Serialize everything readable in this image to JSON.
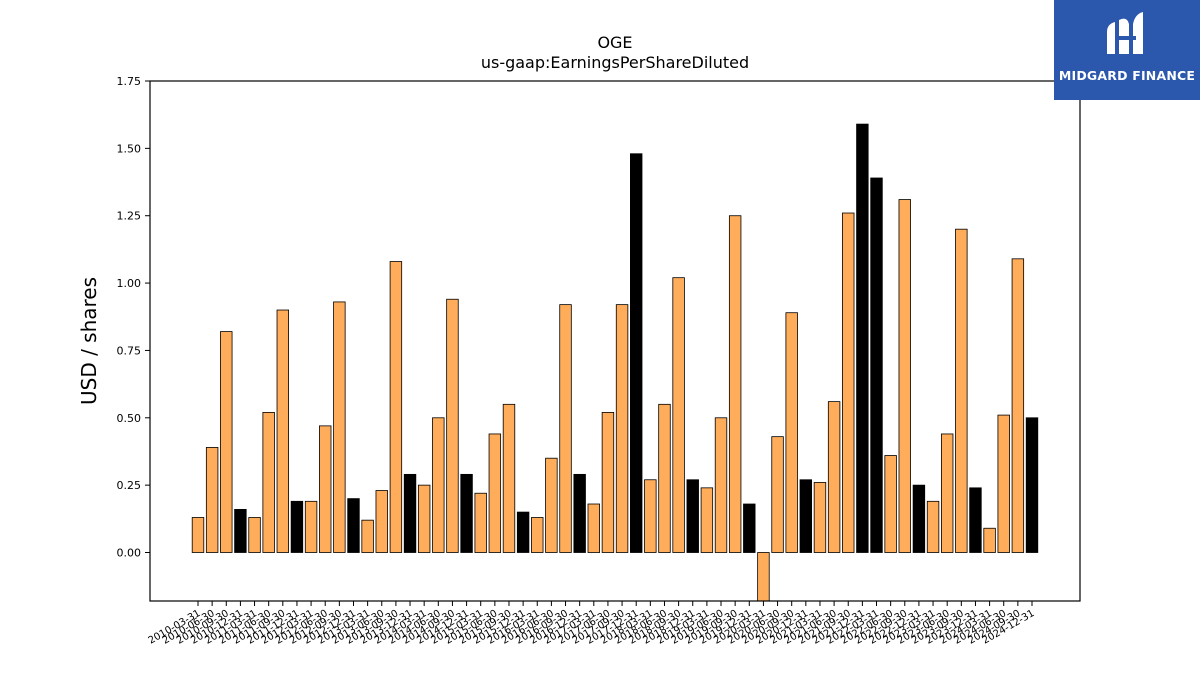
{
  "brand": {
    "name": "MIDGARD FINANCE",
    "background": "#2b57ad"
  },
  "chart_data": {
    "type": "bar",
    "title": "OGE",
    "subtitle": "us-gaap:EarningsPerShareDiluted",
    "ylabel": "USD / shares",
    "xlabel": "",
    "ylim": [
      -0.18,
      1.75
    ],
    "yticks": [
      "0.00",
      "0.25",
      "0.50",
      "0.75",
      "1.00",
      "1.25",
      "1.50",
      "1.75"
    ],
    "grid": false,
    "colors": {
      "quarterly": "#ffad5a",
      "annual": "#000000",
      "edge": "#000000"
    },
    "categories": [
      "2010-03-31",
      "2010-06-30",
      "2010-09-30",
      "2010-12-31",
      "2011-03-31",
      "2011-06-30",
      "2011-09-30",
      "2011-12-31",
      "2012-03-31",
      "2012-06-30",
      "2012-09-30",
      "2012-12-31",
      "2013-03-31",
      "2013-06-30",
      "2013-09-30",
      "2013-12-31",
      "2014-03-31",
      "2014-06-30",
      "2014-09-30",
      "2014-12-31",
      "2015-03-31",
      "2015-06-30",
      "2015-09-30",
      "2015-12-31",
      "2016-03-31",
      "2016-06-30",
      "2016-09-30",
      "2016-12-31",
      "2017-03-31",
      "2017-06-30",
      "2017-09-30",
      "2017-12-31",
      "2018-03-31",
      "2018-06-30",
      "2018-09-30",
      "2018-12-31",
      "2019-03-31",
      "2019-06-30",
      "2019-09-30",
      "2019-12-31",
      "2020-03-31",
      "2020-06-30",
      "2020-09-30",
      "2020-12-31",
      "2021-03-31",
      "2021-06-30",
      "2021-09-30",
      "2021-12-31",
      "2022-03-31",
      "2022-06-30",
      "2022-09-30",
      "2022-12-31",
      "2023-03-31",
      "2023-06-30",
      "2023-09-30",
      "2023-12-31",
      "2024-03-31",
      "2024-06-30",
      "2024-09-30",
      "2024-12-31"
    ],
    "values": [
      0.13,
      0.39,
      0.82,
      0.16,
      0.13,
      0.52,
      0.9,
      0.19,
      0.19,
      0.47,
      0.93,
      0.2,
      0.12,
      0.23,
      1.08,
      0.29,
      0.25,
      0.5,
      0.94,
      0.29,
      0.22,
      0.44,
      0.55,
      0.15,
      0.13,
      0.35,
      0.92,
      0.29,
      0.18,
      0.52,
      0.92,
      1.48,
      0.27,
      0.55,
      1.02,
      0.27,
      0.24,
      0.5,
      1.25,
      0.18,
      -0.19,
      0.43,
      0.89,
      0.27,
      0.26,
      0.56,
      1.26,
      1.59,
      1.39,
      0.36,
      1.31,
      0.25,
      0.19,
      0.44,
      1.2,
      0.24,
      0.09,
      0.51,
      1.09,
      0.5
    ],
    "annual": [
      false,
      false,
      false,
      true,
      false,
      false,
      false,
      true,
      false,
      false,
      false,
      true,
      false,
      false,
      false,
      true,
      false,
      false,
      false,
      true,
      false,
      false,
      false,
      true,
      false,
      false,
      false,
      true,
      false,
      false,
      false,
      true,
      false,
      false,
      false,
      true,
      false,
      false,
      false,
      true,
      false,
      false,
      false,
      true,
      false,
      false,
      false,
      true,
      true,
      false,
      false,
      true,
      false,
      false,
      false,
      true,
      false,
      false,
      false,
      true
    ]
  }
}
